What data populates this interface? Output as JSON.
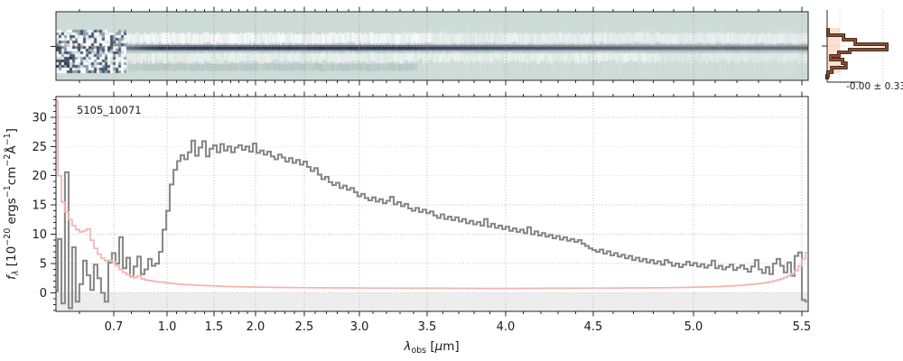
{
  "colors": {
    "background": "#ffffff",
    "spine": "#262626",
    "grid_main": "#bdbdbd",
    "below_zero_band": "#ededed",
    "flux_line": "#898989",
    "error_line": "#f5b3b0",
    "panel2d_background": "#cddbd7",
    "panel2d_trace": "#31405c",
    "panel2d_noise_slate": "#5e7895",
    "panel2d_grid": "#a8907f",
    "panel2d_centerline": "#b98f85",
    "profile_line": "#a0522d",
    "profile_outline": "#2a1710",
    "profile_fill": "#fbd9c7",
    "profile_guides": "#c0c0c0"
  },
  "main": {
    "object_label": "5105_10071",
    "ylabel_parts": {
      "f": "f",
      "sub": "λ",
      "p1": " [10",
      "e1": "−20",
      "p2": " ergs",
      "e2": "−1",
      "p3": "cm",
      "e3": "−2",
      "p4": "Å",
      "e4": "−1",
      "p5": "]"
    },
    "xlabel_parts": {
      "sym": "λ",
      "sub": "obs",
      "p1": " [",
      "mu": "μ",
      "p2": "m]"
    }
  },
  "profile_panel": {
    "annotation": "-0.00 ± 0.33"
  },
  "chart_data": {
    "type": "line",
    "title": "5105_10071",
    "xlabel": "lambda_obs [um]",
    "ylabel": "f_lambda [1e-20 ergs-1 cm-2 A-1]",
    "grid": true,
    "xlim": [
      0.55,
      5.53
    ],
    "ylim": [
      -3.2,
      33.5
    ],
    "texture_seed": 7,
    "wavelength_anchors": [
      [
        0.55,
        0.0
      ],
      [
        0.6,
        0.0312
      ],
      [
        0.7,
        0.0768
      ],
      [
        1.0,
        0.1477
      ],
      [
        1.5,
        0.2101
      ],
      [
        2.0,
        0.2653
      ],
      [
        2.5,
        0.3301
      ],
      [
        3.0,
        0.4034
      ],
      [
        3.5,
        0.4934
      ],
      [
        4.0,
        0.5978
      ],
      [
        4.5,
        0.7143
      ],
      [
        5.0,
        0.8475
      ],
      [
        5.5,
        0.9916
      ],
      [
        5.53,
        1.0
      ]
    ],
    "xticks": [
      {
        "v": 0.7,
        "label": "0.7"
      },
      {
        "v": 1.0,
        "label": "1.0"
      },
      {
        "v": 1.5,
        "label": "1.5"
      },
      {
        "v": 2.0,
        "label": "2.0"
      },
      {
        "v": 2.5,
        "label": "2.5"
      },
      {
        "v": 3.0,
        "label": "3.0"
      },
      {
        "v": 3.5,
        "label": "3.5"
      },
      {
        "v": 4.0,
        "label": "4.0"
      },
      {
        "v": 4.5,
        "label": "4.5"
      },
      {
        "v": 5.0,
        "label": "5.0"
      },
      {
        "v": 5.5,
        "label": "5.5"
      }
    ],
    "yticks": [
      {
        "v": 0,
        "label": "0"
      },
      {
        "v": 5,
        "label": "5"
      },
      {
        "v": 10,
        "label": "10"
      },
      {
        "v": 15,
        "label": "15"
      },
      {
        "v": 20,
        "label": "20"
      },
      {
        "v": 25,
        "label": "25"
      },
      {
        "v": 30,
        "label": "30"
      }
    ],
    "xtick_minor_step": 0.1,
    "ytick_minor_step": 1,
    "series_names": [
      "flux",
      "error"
    ],
    "points": [
      [
        0.55,
        0.3,
        32.8
      ],
      [
        0.558,
        9.2,
        20.0
      ],
      [
        0.565,
        -1.8,
        15.5
      ],
      [
        0.573,
        20.6,
        13.8
      ],
      [
        0.581,
        -2.6,
        12.5
      ],
      [
        0.588,
        7.8,
        11.5
      ],
      [
        0.596,
        -1.5,
        10.8
      ],
      [
        0.605,
        1.5,
        10.4
      ],
      [
        0.616,
        5.5,
        10.6
      ],
      [
        0.626,
        3.0,
        10.9
      ],
      [
        0.637,
        0.5,
        9.0
      ],
      [
        0.647,
        4.8,
        7.6
      ],
      [
        0.658,
        2.5,
        6.6
      ],
      [
        0.668,
        0.0,
        5.9
      ],
      [
        0.679,
        -1.5,
        5.5
      ],
      [
        0.689,
        5.2,
        5.6
      ],
      [
        0.7,
        6.8,
        5.3
      ],
      [
        0.72,
        5.0,
        4.6
      ],
      [
        0.741,
        9.5,
        4.0
      ],
      [
        0.761,
        4.2,
        3.5
      ],
      [
        0.781,
        6.0,
        3.1
      ],
      [
        0.802,
        2.8,
        2.8
      ],
      [
        0.822,
        4.5,
        2.6
      ],
      [
        0.842,
        6.2,
        2.9
      ],
      [
        0.863,
        3.2,
        2.4
      ],
      [
        0.883,
        4.0,
        2.2
      ],
      [
        0.903,
        5.8,
        2.1
      ],
      [
        0.924,
        4.6,
        2.0
      ],
      [
        0.944,
        5.0,
        1.9
      ],
      [
        0.964,
        7.0,
        1.85
      ],
      [
        0.985,
        10.8,
        1.8
      ],
      [
        1.01,
        14.0,
        1.7
      ],
      [
        1.048,
        18.5,
        1.6
      ],
      [
        1.087,
        21.0,
        1.55
      ],
      [
        1.125,
        22.5,
        1.5
      ],
      [
        1.163,
        23.5,
        1.45
      ],
      [
        1.202,
        22.8,
        1.4
      ],
      [
        1.24,
        24.0,
        1.38
      ],
      [
        1.279,
        26.0,
        1.35
      ],
      [
        1.317,
        23.4,
        1.3
      ],
      [
        1.356,
        24.8,
        1.28
      ],
      [
        1.394,
        25.9,
        1.25
      ],
      [
        1.433,
        23.3,
        1.22
      ],
      [
        1.471,
        24.6,
        1.2
      ],
      [
        1.51,
        25.2,
        1.18
      ],
      [
        1.554,
        24.0,
        1.15
      ],
      [
        1.598,
        25.4,
        1.12
      ],
      [
        1.641,
        24.3,
        1.1
      ],
      [
        1.685,
        25.0,
        1.08
      ],
      [
        1.728,
        24.0,
        1.06
      ],
      [
        1.772,
        24.8,
        1.05
      ],
      [
        1.815,
        25.2,
        1.03
      ],
      [
        1.859,
        24.4,
        1.02
      ],
      [
        1.902,
        25.0,
        1.01
      ],
      [
        1.946,
        24.1,
        1.0
      ],
      [
        1.989,
        25.5,
        0.99
      ],
      [
        2.028,
        23.9,
        0.98
      ],
      [
        2.065,
        24.3,
        0.97
      ],
      [
        2.102,
        23.6,
        0.96
      ],
      [
        2.139,
        24.1,
        0.96
      ],
      [
        2.176,
        23.3,
        0.95
      ],
      [
        2.213,
        22.8,
        0.94
      ],
      [
        2.25,
        23.6,
        0.93
      ],
      [
        2.287,
        23.1,
        0.93
      ],
      [
        2.324,
        22.4,
        0.92
      ],
      [
        2.361,
        23.0,
        0.91
      ],
      [
        2.398,
        22.2,
        0.9
      ],
      [
        2.435,
        22.7,
        0.9
      ],
      [
        2.472,
        21.9,
        0.89
      ],
      [
        2.508,
        22.4,
        0.89
      ],
      [
        2.541,
        21.5,
        0.88
      ],
      [
        2.574,
        20.8,
        0.88
      ],
      [
        2.607,
        21.3,
        0.87
      ],
      [
        2.639,
        20.2,
        0.87
      ],
      [
        2.672,
        19.4,
        0.86
      ],
      [
        2.705,
        19.8,
        0.86
      ],
      [
        2.738,
        18.9,
        0.86
      ],
      [
        2.77,
        18.4,
        0.85
      ],
      [
        2.803,
        18.8,
        0.85
      ],
      [
        2.836,
        17.9,
        0.85
      ],
      [
        2.869,
        18.3,
        0.84
      ],
      [
        2.902,
        17.6,
        0.84
      ],
      [
        2.934,
        17.9,
        0.84
      ],
      [
        2.967,
        17.2,
        0.83
      ],
      [
        3.0,
        16.5,
        0.83
      ],
      [
        3.027,
        16.9,
        0.83
      ],
      [
        3.053,
        16.2,
        0.82
      ],
      [
        3.08,
        15.8,
        0.82
      ],
      [
        3.107,
        16.3,
        0.82
      ],
      [
        3.133,
        15.6,
        0.82
      ],
      [
        3.16,
        16.0,
        0.81
      ],
      [
        3.187,
        15.3,
        0.81
      ],
      [
        3.213,
        15.7,
        0.81
      ],
      [
        3.24,
        16.4,
        0.81
      ],
      [
        3.267,
        15.1,
        0.8
      ],
      [
        3.293,
        15.5,
        0.8
      ],
      [
        3.32,
        14.8,
        0.8
      ],
      [
        3.347,
        15.2,
        0.8
      ],
      [
        3.373,
        14.4,
        0.8
      ],
      [
        3.4,
        14.0,
        0.79
      ],
      [
        3.427,
        14.5,
        0.79
      ],
      [
        3.453,
        13.8,
        0.79
      ],
      [
        3.48,
        14.2,
        0.79
      ],
      [
        3.506,
        13.6,
        0.79
      ],
      [
        3.529,
        13.9,
        0.78
      ],
      [
        3.552,
        13.2,
        0.78
      ],
      [
        3.575,
        12.8,
        0.78
      ],
      [
        3.598,
        13.4,
        0.78
      ],
      [
        3.621,
        12.6,
        0.78
      ],
      [
        3.644,
        13.0,
        0.78
      ],
      [
        3.667,
        12.4,
        0.77
      ],
      [
        3.69,
        12.9,
        0.77
      ],
      [
        3.713,
        12.2,
        0.77
      ],
      [
        3.736,
        12.6,
        0.77
      ],
      [
        3.759,
        11.9,
        0.77
      ],
      [
        3.782,
        12.3,
        0.77
      ],
      [
        3.805,
        11.7,
        0.77
      ],
      [
        3.828,
        12.1,
        0.76
      ],
      [
        3.851,
        11.5,
        0.76
      ],
      [
        3.874,
        12.6,
        0.76
      ],
      [
        3.897,
        11.3,
        0.76
      ],
      [
        3.92,
        11.8,
        0.76
      ],
      [
        3.943,
        11.1,
        0.76
      ],
      [
        3.966,
        11.5,
        0.76
      ],
      [
        3.989,
        10.9,
        0.76
      ],
      [
        4.01,
        11.3,
        0.76
      ],
      [
        4.031,
        10.6,
        0.76
      ],
      [
        4.052,
        11.0,
        0.76
      ],
      [
        4.072,
        10.4,
        0.76
      ],
      [
        4.093,
        10.8,
        0.77
      ],
      [
        4.113,
        10.2,
        0.77
      ],
      [
        4.134,
        11.2,
        0.77
      ],
      [
        4.155,
        10.0,
        0.77
      ],
      [
        4.175,
        10.5,
        0.77
      ],
      [
        4.196,
        9.8,
        0.77
      ],
      [
        4.216,
        10.2,
        0.78
      ],
      [
        4.237,
        9.6,
        0.78
      ],
      [
        4.258,
        9.9,
        0.78
      ],
      [
        4.278,
        9.3,
        0.78
      ],
      [
        4.299,
        9.7,
        0.78
      ],
      [
        4.32,
        9.1,
        0.79
      ],
      [
        4.34,
        9.5,
        0.79
      ],
      [
        4.361,
        8.9,
        0.79
      ],
      [
        4.381,
        9.2,
        0.79
      ],
      [
        4.402,
        8.7,
        0.8
      ],
      [
        4.423,
        9.0,
        0.8
      ],
      [
        4.443,
        8.4,
        0.8
      ],
      [
        4.464,
        8.0,
        0.8
      ],
      [
        4.485,
        7.6,
        0.81
      ],
      [
        4.505,
        7.3,
        0.81
      ],
      [
        4.523,
        7.0,
        0.81
      ],
      [
        4.541,
        7.4,
        0.81
      ],
      [
        4.559,
        6.7,
        0.82
      ],
      [
        4.577,
        7.1,
        0.82
      ],
      [
        4.595,
        6.4,
        0.82
      ],
      [
        4.613,
        6.8,
        0.83
      ],
      [
        4.631,
        6.2,
        0.83
      ],
      [
        4.649,
        6.5,
        0.83
      ],
      [
        4.667,
        5.9,
        0.84
      ],
      [
        4.685,
        6.3,
        0.84
      ],
      [
        4.703,
        5.6,
        0.84
      ],
      [
        4.721,
        6.0,
        0.85
      ],
      [
        4.739,
        5.4,
        0.85
      ],
      [
        4.757,
        5.8,
        0.85
      ],
      [
        4.775,
        5.2,
        0.86
      ],
      [
        4.793,
        5.6,
        0.86
      ],
      [
        4.811,
        5.0,
        0.87
      ],
      [
        4.829,
        5.4,
        0.87
      ],
      [
        4.847,
        4.8,
        0.88
      ],
      [
        4.865,
        5.6,
        0.88
      ],
      [
        4.883,
        5.2,
        0.89
      ],
      [
        4.901,
        4.6,
        0.9
      ],
      [
        4.919,
        5.0,
        0.91
      ],
      [
        4.937,
        4.4,
        0.92
      ],
      [
        4.955,
        4.8,
        0.93
      ],
      [
        4.973,
        5.3,
        0.94
      ],
      [
        4.991,
        4.7,
        0.95
      ],
      [
        5.008,
        5.1,
        0.97
      ],
      [
        5.025,
        4.5,
        0.98
      ],
      [
        5.042,
        4.9,
        1.0
      ],
      [
        5.058,
        4.3,
        1.02
      ],
      [
        5.075,
        4.7,
        1.04
      ],
      [
        5.092,
        5.5,
        1.06
      ],
      [
        5.108,
        4.2,
        1.08
      ],
      [
        5.125,
        4.6,
        1.1
      ],
      [
        5.142,
        4.0,
        1.13
      ],
      [
        5.158,
        4.4,
        1.16
      ],
      [
        5.175,
        4.8,
        1.19
      ],
      [
        5.192,
        3.9,
        1.22
      ],
      [
        5.208,
        4.3,
        1.26
      ],
      [
        5.225,
        4.7,
        1.3
      ],
      [
        5.242,
        4.1,
        1.35
      ],
      [
        5.258,
        3.6,
        1.4
      ],
      [
        5.275,
        4.5,
        1.46
      ],
      [
        5.292,
        5.6,
        1.52
      ],
      [
        5.308,
        4.0,
        1.6
      ],
      [
        5.325,
        3.4,
        1.68
      ],
      [
        5.342,
        4.4,
        1.78
      ],
      [
        5.358,
        3.2,
        1.9
      ],
      [
        5.375,
        5.0,
        2.05
      ],
      [
        5.392,
        5.8,
        2.2
      ],
      [
        5.408,
        4.6,
        2.4
      ],
      [
        5.425,
        3.5,
        2.65
      ],
      [
        5.442,
        5.2,
        2.95
      ],
      [
        5.458,
        2.9,
        3.3
      ],
      [
        5.475,
        6.3,
        3.8
      ],
      [
        5.492,
        6.9,
        4.6
      ],
      [
        5.508,
        -1.2,
        5.8
      ],
      [
        5.525,
        -1.5,
        6.9
      ]
    ],
    "spatial_profile": {
      "annotation": "-0.00 ± 0.33",
      "mean": -0.0,
      "sigma": 0.33,
      "steps": [
        [
          31,
          -0.25
        ],
        [
          39,
          0.08
        ],
        [
          44,
          0.33
        ],
        [
          49,
          1.0
        ],
        [
          55,
          0.21
        ],
        [
          58,
          -0.02
        ],
        [
          62,
          -0.19
        ],
        [
          66,
          0.06
        ],
        [
          70,
          0.13
        ],
        [
          75,
          -0.17
        ],
        [
          80,
          -0.25
        ],
        [
          84,
          -0.27
        ]
      ]
    }
  }
}
